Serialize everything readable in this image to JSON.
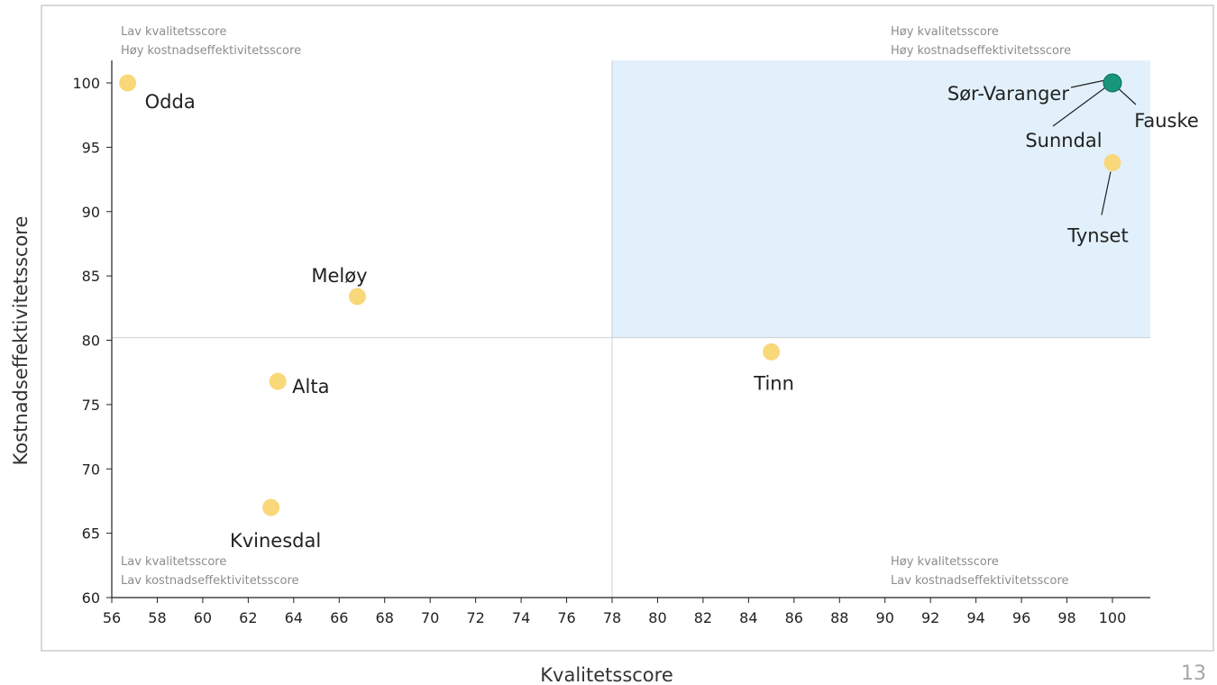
{
  "page_number": "13",
  "chart_data": {
    "type": "scatter",
    "xlabel": "Kvalitetsscore",
    "ylabel": "Kostnadseffektivitetsscore",
    "xlim": [
      56,
      100
    ],
    "ylim": [
      60,
      100
    ],
    "x_ticks": [
      56,
      58,
      60,
      62,
      64,
      66,
      68,
      70,
      72,
      74,
      76,
      78,
      80,
      82,
      84,
      86,
      88,
      90,
      92,
      94,
      96,
      98,
      100
    ],
    "y_ticks": [
      60,
      65,
      70,
      75,
      80,
      85,
      90,
      95,
      100
    ],
    "reference_lines": {
      "x": 78,
      "y": 80.2
    },
    "highlight_quadrant": {
      "x_from": 78,
      "y_from": 80.2,
      "color": "#e1f0fb"
    },
    "colors": {
      "point": "#f9d87a",
      "highlight_point": "#17967a",
      "grid": "#cfcfcf",
      "frame": "#bfbfbf"
    },
    "quadrant_labels": {
      "top_left": [
        "Lav kvalitetsscore",
        "Høy kostnadseffektivitetsscore"
      ],
      "top_right": [
        "Høy kvalitetsscore",
        "Høy kostnadseffektivitetsscore"
      ],
      "bottom_left": [
        "Lav kvalitetsscore",
        "Lav kostnadseffektivitetsscore"
      ],
      "bottom_right": [
        "Høy kvalitetsscore",
        "Lav kostnadseffektivitetsscore"
      ]
    },
    "points": [
      {
        "name": "Odda",
        "x": 56.7,
        "y": 100,
        "highlight": false
      },
      {
        "name": "Meløy",
        "x": 66.8,
        "y": 83.4,
        "highlight": false
      },
      {
        "name": "Alta",
        "x": 63.3,
        "y": 76.8,
        "highlight": false
      },
      {
        "name": "Kvinesdal",
        "x": 63.0,
        "y": 67.0,
        "highlight": false
      },
      {
        "name": "Tinn",
        "x": 85.0,
        "y": 79.1,
        "highlight": false
      },
      {
        "name": "Tynset",
        "x": 100,
        "y": 93.8,
        "highlight": false
      },
      {
        "name": "Sør-Varanger",
        "x": 100,
        "y": 100,
        "highlight": true
      },
      {
        "name": "Fauske",
        "x": 100,
        "y": 100,
        "highlight": true
      },
      {
        "name": "Sunndal",
        "x": 100,
        "y": 100,
        "highlight": true
      }
    ]
  }
}
